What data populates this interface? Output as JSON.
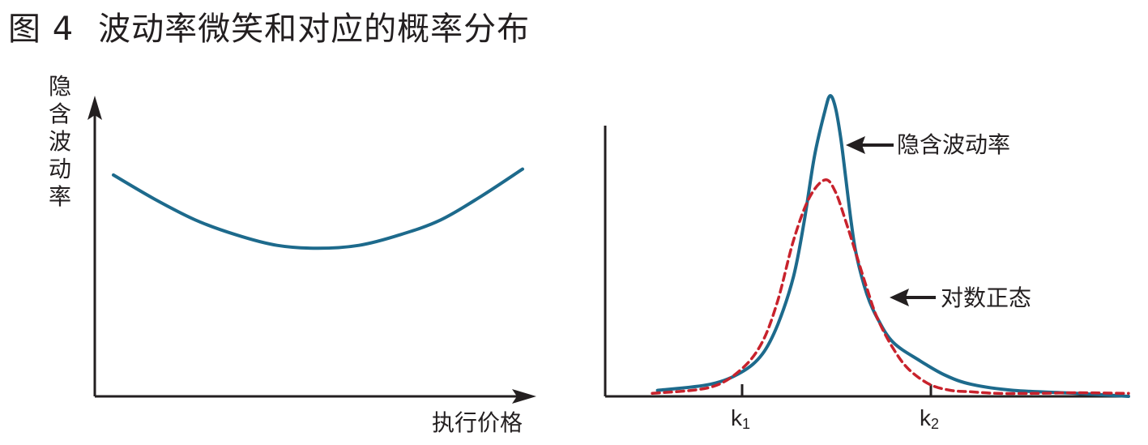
{
  "figure": {
    "number": "图 4",
    "title": "波动率微笑和对应的概率分布"
  },
  "chart_data": [
    {
      "type": "line",
      "panel": "left",
      "ylabel": "隐含波动率",
      "xlabel": "执行价格",
      "series": [
        {
          "color": "#1d6a8c",
          "x": [
            0,
            0.1,
            0.2,
            0.3,
            0.4,
            0.5,
            0.6,
            0.7,
            0.8,
            0.9,
            1.0
          ],
          "values": [
            0.74,
            0.66,
            0.59,
            0.54,
            0.505,
            0.495,
            0.505,
            0.54,
            0.59,
            0.67,
            0.76
          ]
        }
      ],
      "grid": false
    },
    {
      "type": "line",
      "panel": "right",
      "tick_labels": [
        {
          "base": "k",
          "sub": "1"
        },
        {
          "base": "k",
          "sub": "2"
        }
      ],
      "series": [
        {
          "name": "隐含波动率",
          "color": "#1d6a8c",
          "style": "solid",
          "x": [
            0.1,
            0.2,
            0.26,
            0.3,
            0.33,
            0.36,
            0.38,
            0.4,
            0.42,
            0.43,
            0.44,
            0.45,
            0.46,
            0.47,
            0.48,
            0.5,
            0.52,
            0.55,
            0.6,
            0.65,
            0.7,
            0.78,
            0.9,
            1.0
          ],
          "values": [
            0.02,
            0.04,
            0.08,
            0.14,
            0.24,
            0.4,
            0.58,
            0.8,
            0.95,
            1.0,
            0.96,
            0.86,
            0.72,
            0.58,
            0.47,
            0.34,
            0.26,
            0.18,
            0.12,
            0.07,
            0.04,
            0.02,
            0.01,
            0.0
          ]
        },
        {
          "name": "对数正态",
          "color": "#c8222c",
          "style": "dashed",
          "x": [
            0.09,
            0.2,
            0.26,
            0.3,
            0.33,
            0.36,
            0.39,
            0.42,
            0.44,
            0.46,
            0.48,
            0.5,
            0.52,
            0.55,
            0.58,
            0.62,
            0.66,
            0.7,
            0.75,
            0.82,
            0.9,
            1.0
          ],
          "values": [
            0.01,
            0.03,
            0.09,
            0.18,
            0.32,
            0.52,
            0.66,
            0.72,
            0.68,
            0.58,
            0.47,
            0.36,
            0.26,
            0.16,
            0.09,
            0.04,
            0.02,
            0.015,
            0.01,
            0.01,
            0.012,
            0.01
          ]
        }
      ],
      "grid": false
    }
  ]
}
